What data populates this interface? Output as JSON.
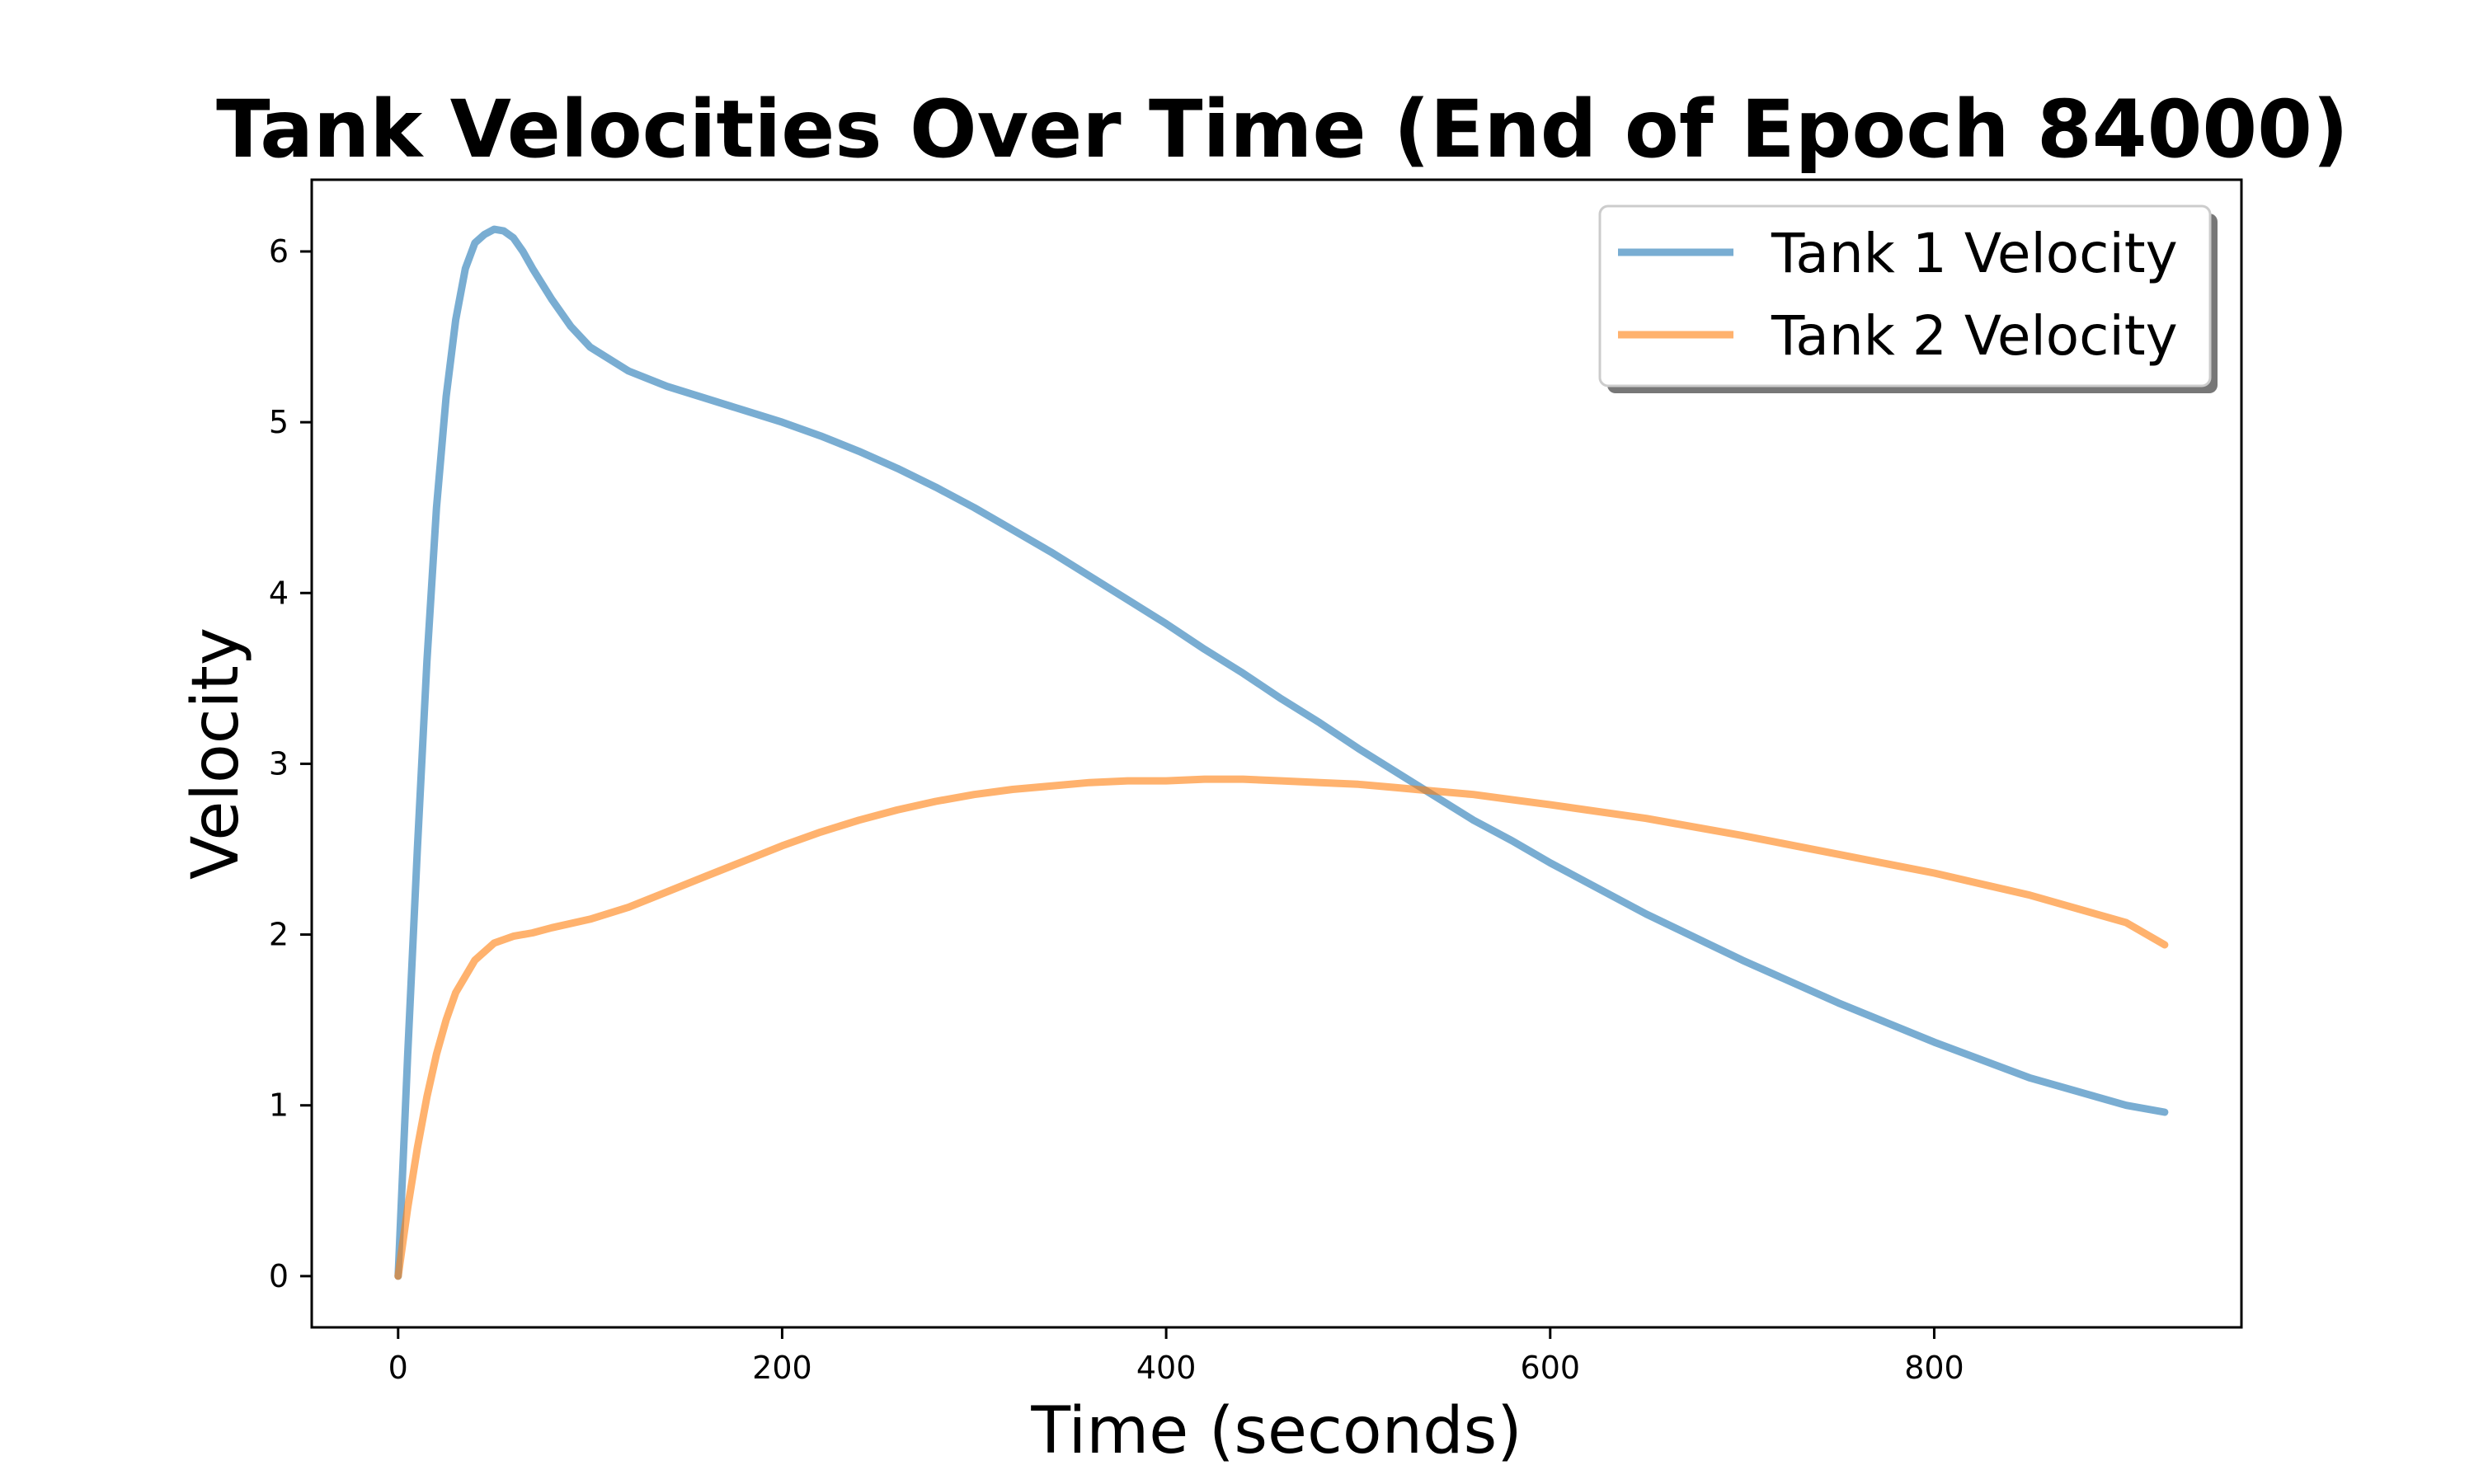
{
  "chart_data": {
    "type": "line",
    "title": "Tank Velocities Over Time (End of Epoch 84000)",
    "xlabel": "Time (seconds)",
    "ylabel": "Velocity",
    "xlim": [
      -45,
      960
    ],
    "ylim": [
      -0.3,
      6.42
    ],
    "xticks": [
      0,
      200,
      400,
      600,
      800
    ],
    "yticks": [
      0,
      1,
      2,
      3,
      4,
      5,
      6
    ],
    "grid": false,
    "legend_position": "top-right",
    "series": [
      {
        "name": "Tank 1 Velocity",
        "color": "#1f77b4",
        "x": [
          0,
          5,
          10,
          15,
          20,
          25,
          30,
          35,
          40,
          45,
          50,
          55,
          60,
          65,
          70,
          80,
          90,
          100,
          120,
          140,
          160,
          180,
          200,
          220,
          240,
          260,
          280,
          300,
          320,
          340,
          360,
          380,
          400,
          420,
          440,
          460,
          480,
          500,
          520,
          540,
          560,
          580,
          600,
          650,
          700,
          750,
          800,
          850,
          900,
          920
        ],
        "y": [
          0,
          1.3,
          2.5,
          3.6,
          4.5,
          5.15,
          5.6,
          5.9,
          6.05,
          6.1,
          6.13,
          6.12,
          6.08,
          6.0,
          5.9,
          5.72,
          5.56,
          5.44,
          5.3,
          5.21,
          5.14,
          5.07,
          5.0,
          4.92,
          4.83,
          4.73,
          4.62,
          4.5,
          4.37,
          4.24,
          4.1,
          3.96,
          3.82,
          3.67,
          3.53,
          3.38,
          3.24,
          3.09,
          2.95,
          2.81,
          2.67,
          2.55,
          2.42,
          2.12,
          1.85,
          1.6,
          1.37,
          1.16,
          1.0,
          0.96
        ]
      },
      {
        "name": "Tank 2 Velocity",
        "color": "#ff7f0e",
        "x": [
          0,
          5,
          10,
          15,
          20,
          25,
          30,
          40,
          50,
          60,
          70,
          80,
          100,
          120,
          140,
          160,
          180,
          200,
          220,
          240,
          260,
          280,
          300,
          320,
          340,
          360,
          380,
          400,
          420,
          440,
          460,
          480,
          500,
          520,
          540,
          560,
          580,
          600,
          650,
          700,
          750,
          800,
          850,
          900,
          920
        ],
        "y": [
          0,
          0.4,
          0.75,
          1.05,
          1.3,
          1.5,
          1.66,
          1.85,
          1.95,
          1.99,
          2.01,
          2.04,
          2.09,
          2.16,
          2.25,
          2.34,
          2.43,
          2.52,
          2.6,
          2.67,
          2.73,
          2.78,
          2.82,
          2.85,
          2.87,
          2.89,
          2.9,
          2.9,
          2.91,
          2.91,
          2.9,
          2.89,
          2.88,
          2.86,
          2.84,
          2.82,
          2.79,
          2.76,
          2.68,
          2.58,
          2.47,
          2.36,
          2.23,
          2.07,
          1.94
        ]
      }
    ]
  }
}
